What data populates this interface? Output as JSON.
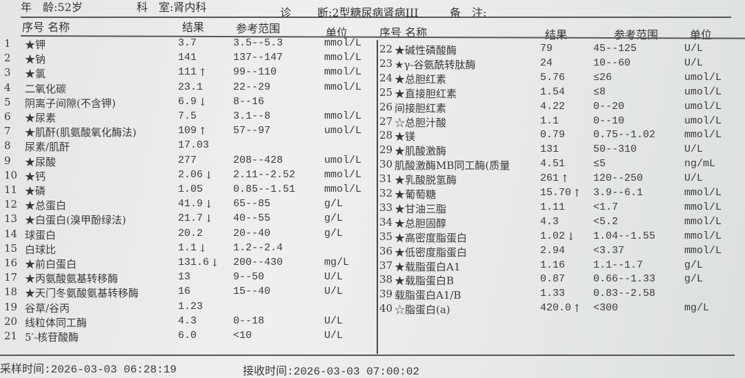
{
  "patient": {
    "age": "年　龄:52岁",
    "department": "科　室:肾内科",
    "diagnosis_label": "诊",
    "diagnosis": "断:2型糖尿病肾病III",
    "remark": "备　注:"
  },
  "columns": {
    "no_name": "序号  名称",
    "result": "结果",
    "range": "参考范围",
    "unit": "单位"
  },
  "left_rows": [
    {
      "no": "1",
      "name": "★钾",
      "result": "3.7",
      "flag": "",
      "range": "3.5--5.3",
      "unit": "mmol/L"
    },
    {
      "no": "2",
      "name": "★钠",
      "result": "141",
      "flag": "",
      "range": "137--147",
      "unit": "mmol/L"
    },
    {
      "no": "3",
      "name": "★氯",
      "result": "111",
      "flag": "↑",
      "range": "99--110",
      "unit": "mmol/L"
    },
    {
      "no": "4",
      "name": "二氧化碳",
      "result": "23.1",
      "flag": "",
      "range": "22--29",
      "unit": "mmol/L"
    },
    {
      "no": "5",
      "name": "阴离子间隙(不含钾)",
      "result": "6.9",
      "flag": "↓",
      "range": "8--16",
      "unit": ""
    },
    {
      "no": "6",
      "name": "★尿素",
      "result": "7.5",
      "flag": "",
      "range": "3.1--8",
      "unit": "mmol/L"
    },
    {
      "no": "7",
      "name": "★肌酐(肌氨酸氧化酶法)",
      "result": "109",
      "flag": "↑",
      "range": "57--97",
      "unit": "umol/L"
    },
    {
      "no": "8",
      "name": "尿素/肌酐",
      "result": "17.03",
      "flag": "",
      "range": "",
      "unit": ""
    },
    {
      "no": "9",
      "name": "★尿酸",
      "result": "277",
      "flag": "",
      "range": "208--428",
      "unit": "umol/L"
    },
    {
      "no": "10",
      "name": "★钙",
      "result": "2.06",
      "flag": "↓",
      "range": "2.11--2.52",
      "unit": "mmol/L"
    },
    {
      "no": "11",
      "name": "★磷",
      "result": "1.05",
      "flag": "",
      "range": "0.85--1.51",
      "unit": "mmol/L"
    },
    {
      "no": "12",
      "name": "★总蛋白",
      "result": "41.9",
      "flag": "↓",
      "range": "65--85",
      "unit": "g/L"
    },
    {
      "no": "13",
      "name": "★白蛋白(溴甲酚绿法)",
      "result": "21.7",
      "flag": "↓",
      "range": "40--55",
      "unit": "g/L"
    },
    {
      "no": "14",
      "name": "球蛋白",
      "result": "20.2",
      "flag": "",
      "range": "20--40",
      "unit": "g/L"
    },
    {
      "no": "15",
      "name": "白球比",
      "result": "1.1",
      "flag": "↓",
      "range": "1.2--2.4",
      "unit": ""
    },
    {
      "no": "16",
      "name": "★前白蛋白",
      "result": "131.6",
      "flag": "↓",
      "range": "200--430",
      "unit": "mg/L"
    },
    {
      "no": "17",
      "name": "★丙氨酸氨基转移酶",
      "result": "13",
      "flag": "",
      "range": "9--50",
      "unit": "U/L"
    },
    {
      "no": "18",
      "name": "★天门冬氨酸氨基转移酶",
      "result": "16",
      "flag": "",
      "range": "15--40",
      "unit": "U/L"
    },
    {
      "no": "19",
      "name": "谷草/谷丙",
      "result": "1.23",
      "flag": "",
      "range": "",
      "unit": ""
    },
    {
      "no": "20",
      "name": "线粒体同工酶",
      "result": "4.3",
      "flag": "",
      "range": "0--18",
      "unit": "U/L"
    },
    {
      "no": "21",
      "name": "5′-核苷酸酶",
      "result": "6.0",
      "flag": "",
      "range": "<10",
      "unit": "U/L"
    }
  ],
  "right_rows": [
    {
      "no": "22",
      "name": "★碱性磷酸酶",
      "result": "79",
      "flag": "",
      "range": "45--125",
      "unit": "U/L"
    },
    {
      "no": "23",
      "name": "★γ-谷氨酰转肽酶",
      "result": "24",
      "flag": "",
      "range": "10--60",
      "unit": "U/L"
    },
    {
      "no": "24",
      "name": "★总胆红素",
      "result": "5.76",
      "flag": "",
      "range": "≤26",
      "unit": "umol/L"
    },
    {
      "no": "25",
      "name": "★直接胆红素",
      "result": "1.54",
      "flag": "",
      "range": "≤8",
      "unit": "umol/L"
    },
    {
      "no": "26",
      "name": "间接胆红素",
      "result": "4.22",
      "flag": "",
      "range": "0--20",
      "unit": "umol/L"
    },
    {
      "no": "27",
      "name": "☆总胆汁酸",
      "result": "1.1",
      "flag": "",
      "range": "0--10",
      "unit": "umol/L"
    },
    {
      "no": "28",
      "name": "★镁",
      "result": "0.79",
      "flag": "",
      "range": "0.75--1.02",
      "unit": "mmol/L"
    },
    {
      "no": "29",
      "name": "★肌酸激酶",
      "result": "131",
      "flag": "",
      "range": "50--310",
      "unit": "U/L"
    },
    {
      "no": "30",
      "name": "肌酸激酶MB同工酶(质量",
      "result": "4.51",
      "flag": "",
      "range": "≤5",
      "unit": "ng/mL"
    },
    {
      "no": "31",
      "name": "★乳酸脱氢酶",
      "result": "261",
      "flag": "↑",
      "range": "120--250",
      "unit": "U/L"
    },
    {
      "no": "32",
      "name": "★葡萄糖",
      "result": "15.70",
      "flag": "↑",
      "range": "3.9--6.1",
      "unit": "mmol/L"
    },
    {
      "no": "33",
      "name": "★甘油三脂",
      "result": "1.11",
      "flag": "",
      "range": "<1.7",
      "unit": "mmol/L"
    },
    {
      "no": "34",
      "name": "★总胆固醇",
      "result": "4.3",
      "flag": "",
      "range": "<5.2",
      "unit": "mmol/L"
    },
    {
      "no": "35",
      "name": "★高密度脂蛋白",
      "result": "1.02",
      "flag": "↓",
      "range": "1.04--1.55",
      "unit": "mmol/L"
    },
    {
      "no": "36",
      "name": "★低密度脂蛋白",
      "result": "2.94",
      "flag": "",
      "range": "<3.37",
      "unit": "mmol/L"
    },
    {
      "no": "37",
      "name": "★载脂蛋白A1",
      "result": "1.16",
      "flag": "",
      "range": "1.1--1.7",
      "unit": "g/L"
    },
    {
      "no": "38",
      "name": "★载脂蛋白B",
      "result": "0.87",
      "flag": "",
      "range": "0.66--1.33",
      "unit": "g/L"
    },
    {
      "no": "39",
      "name": "载脂蛋白A1/B",
      "result": "1.33",
      "flag": "",
      "range": "0.83--2.58",
      "unit": ""
    },
    {
      "no": "40",
      "name": "☆脂蛋白(a)",
      "result": "420.0",
      "flag": "↑",
      "range": "<300",
      "unit": "mg/L"
    }
  ],
  "footer": {
    "sample_time": "采样时间:2026-03-03 06:28:19",
    "receive_time": "接收时间:2026-03-03 07:00:02"
  }
}
